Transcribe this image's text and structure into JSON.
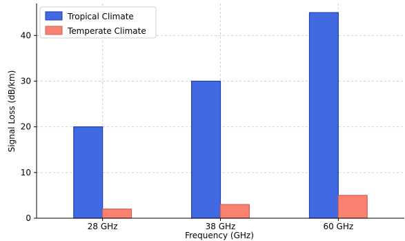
{
  "chart_data": {
    "type": "bar",
    "categories": [
      "28 GHz",
      "38 GHz",
      "60 GHz"
    ],
    "series": [
      {
        "name": "Tropical Climate",
        "values": [
          20,
          30,
          45
        ],
        "color": "#4169e1",
        "edge": "#1f3fb0"
      },
      {
        "name": "Temperate Climate",
        "values": [
          2,
          3,
          5
        ],
        "color": "#fa8072",
        "edge": "#d35f52"
      }
    ],
    "xlabel": "Frequency (GHz)",
    "ylabel": "Signal Loss (dB/km)",
    "ylim": [
      0,
      47
    ],
    "yticks": [
      0,
      10,
      20,
      30,
      40
    ],
    "grid": true,
    "legend_position": "top-left"
  }
}
